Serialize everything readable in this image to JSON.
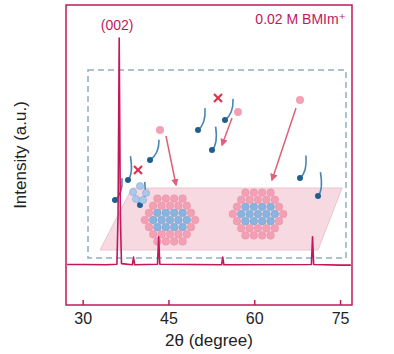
{
  "chart_data": {
    "type": "line",
    "x_label": "2θ (degree)",
    "y_label": "Intensity (a.u.)",
    "annotations": [
      {
        "text": "(002)",
        "x": 36.3
      }
    ],
    "x": [
      27.2,
      30,
      34,
      35.9,
      36.1,
      36.3,
      36.5,
      36.7,
      38.6,
      38.8,
      39.0,
      43.0,
      43.2,
      43.4,
      54.2,
      54.4,
      54.6,
      69.9,
      70.1,
      70.3,
      75,
      76.8
    ],
    "series": [
      {
        "name": "0.02 M BMIm⁺",
        "color": "#c2185b",
        "values": [
          13.5,
          13.5,
          13.4,
          13.6,
          30,
          89,
          30,
          13.8,
          13.4,
          16,
          13.4,
          13.6,
          22.7,
          13.6,
          13.4,
          16,
          13.4,
          13.5,
          22.7,
          13.5,
          13.3,
          13.3
        ]
      }
    ],
    "xlim": [
      27,
      77
    ],
    "ylim": [
      0,
      100
    ],
    "xticks": [
      30,
      45,
      60,
      75
    ],
    "yticks": [],
    "tick_labels": "x",
    "legend": "upper right",
    "grid": false
  }
}
